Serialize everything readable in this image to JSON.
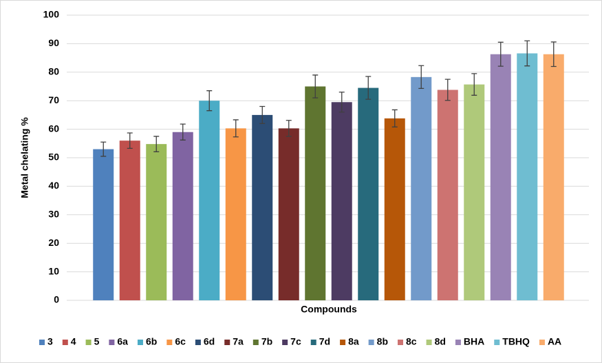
{
  "chart_data": {
    "type": "bar",
    "y_label": "Metal chelating %",
    "x_label": "Compounds",
    "categories": [
      "3",
      "4",
      "5",
      "6a",
      "6b",
      "6c",
      "6d",
      "7a",
      "7b",
      "7c",
      "7d",
      "8a",
      "8b",
      "8c",
      "8d",
      "BHA",
      "TBHQ",
      "AA"
    ],
    "values": [
      53,
      56,
      54.8,
      59,
      70,
      60.3,
      65,
      60.3,
      75,
      69.5,
      74.5,
      63.8,
      78.3,
      73.8,
      75.7,
      86.3,
      86.6,
      86.3
    ],
    "errors": [
      2.5,
      2.7,
      2.7,
      2.8,
      3.5,
      3,
      3,
      2.8,
      4,
      3.5,
      4,
      3,
      4,
      3.7,
      3.8,
      4.2,
      4.4,
      4.3
    ],
    "colors": [
      "#4f81bd",
      "#c0504d",
      "#9bbb59",
      "#8064a2",
      "#4bacc6",
      "#f79646",
      "#2c4d75",
      "#772c2a",
      "#5f7530",
      "#4d3b62",
      "#276a7c",
      "#b65708",
      "#729aca",
      "#cd7371",
      "#afc97a",
      "#9983b5",
      "#6fbdd1",
      "#f9ab6b"
    ],
    "ylim": [
      0,
      100
    ],
    "yticks": [
      0,
      10,
      20,
      30,
      40,
      50,
      60,
      70,
      80,
      90,
      100
    ],
    "grid": true,
    "legend": "bottom"
  }
}
